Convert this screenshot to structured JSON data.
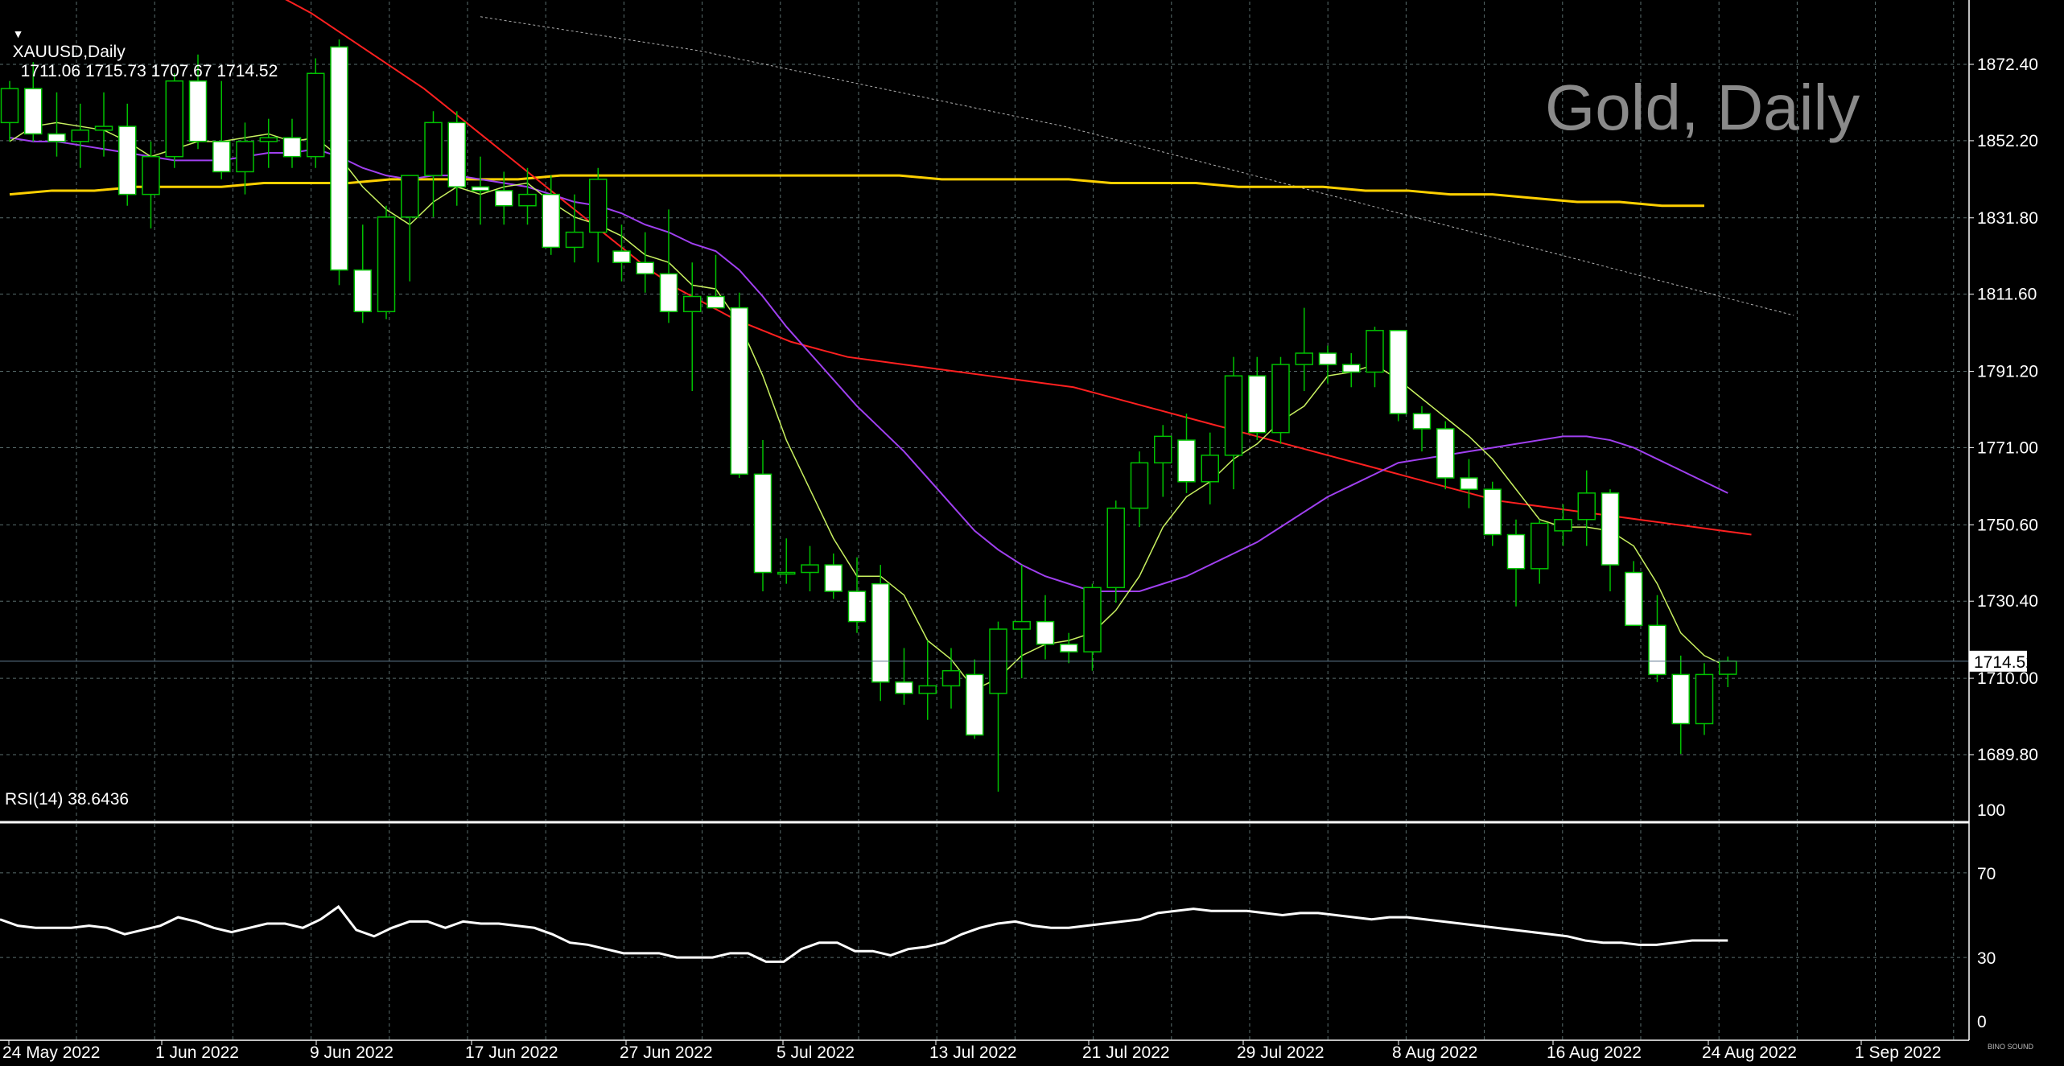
{
  "header": {
    "symbol": "XAUUSD,Daily",
    "ohlc": "1711.06 1715.73 1707.67 1714.52"
  },
  "watermark": "Gold, Daily",
  "rsi_header": "RSI(14) 38.6436",
  "current_price_label": "1714.52",
  "brand": "BINO SOUND",
  "colors": {
    "background": "#000000",
    "grid": "#5a6e6e",
    "bull_candle": "#000000",
    "bear_candle": "#ffffff",
    "wick": "#00c000",
    "ma_fast": "#c8f060",
    "ma_mid": "#a040f0",
    "ma_slow": "#ff2020",
    "ma_long": "#ffd000",
    "ma_longest": "#b0b0b0",
    "rsi": "#ffffff"
  },
  "chart_data": [
    {
      "type": "candlestick",
      "title": "XAUUSD,Daily",
      "ylim": [
        1678,
        1884
      ],
      "yticks": [
        "1872.40",
        "1852.20",
        "1831.80",
        "1811.60",
        "1791.20",
        "1771.00",
        "1750.60",
        "1730.40",
        "1710.00",
        "1689.80"
      ],
      "xtick_labels": [
        "24 May 2022",
        "1 Jun 2022",
        "9 Jun 2022",
        "17 Jun 2022",
        "27 Jun 2022",
        "5 Jul 2022",
        "13 Jul 2022",
        "21 Jul 2022",
        "29 Jul 2022",
        "8 Aug 2022",
        "16 Aug 2022",
        "24 Aug 2022",
        "1 Sep 2022"
      ],
      "candles": [
        {
          "o": 1857,
          "h": 1868,
          "l": 1852,
          "c": 1866
        },
        {
          "o": 1866,
          "h": 1873,
          "l": 1852,
          "c": 1854
        },
        {
          "o": 1854,
          "h": 1865,
          "l": 1848,
          "c": 1852
        },
        {
          "o": 1852,
          "h": 1862,
          "l": 1845,
          "c": 1855
        },
        {
          "o": 1855,
          "h": 1865,
          "l": 1848,
          "c": 1856
        },
        {
          "o": 1856,
          "h": 1862,
          "l": 1835,
          "c": 1838
        },
        {
          "o": 1838,
          "h": 1852,
          "l": 1829,
          "c": 1848
        },
        {
          "o": 1848,
          "h": 1870,
          "l": 1845,
          "c": 1868
        },
        {
          "o": 1868,
          "h": 1875,
          "l": 1850,
          "c": 1852
        },
        {
          "o": 1852,
          "h": 1868,
          "l": 1842,
          "c": 1844
        },
        {
          "o": 1844,
          "h": 1857,
          "l": 1838,
          "c": 1852
        },
        {
          "o": 1852,
          "h": 1858,
          "l": 1845,
          "c": 1853
        },
        {
          "o": 1853,
          "h": 1858,
          "l": 1845,
          "c": 1848
        },
        {
          "o": 1848,
          "h": 1874,
          "l": 1845,
          "c": 1870
        },
        {
          "o": 1877,
          "h": 1879,
          "l": 1814,
          "c": 1818
        },
        {
          "o": 1818,
          "h": 1830,
          "l": 1804,
          "c": 1807
        },
        {
          "o": 1807,
          "h": 1835,
          "l": 1805,
          "c": 1832
        },
        {
          "o": 1832,
          "h": 1842,
          "l": 1815,
          "c": 1843
        },
        {
          "o": 1843,
          "h": 1860,
          "l": 1832,
          "c": 1857
        },
        {
          "o": 1857,
          "h": 1860,
          "l": 1835,
          "c": 1840
        },
        {
          "o": 1840,
          "h": 1848,
          "l": 1830,
          "c": 1839
        },
        {
          "o": 1839,
          "h": 1844,
          "l": 1830,
          "c": 1835
        },
        {
          "o": 1835,
          "h": 1845,
          "l": 1830,
          "c": 1838
        },
        {
          "o": 1838,
          "h": 1843,
          "l": 1822,
          "c": 1824
        },
        {
          "o": 1824,
          "h": 1838,
          "l": 1820,
          "c": 1828
        },
        {
          "o": 1828,
          "h": 1845,
          "l": 1820,
          "c": 1842
        },
        {
          "o": 1823,
          "h": 1830,
          "l": 1815,
          "c": 1820
        },
        {
          "o": 1820,
          "h": 1828,
          "l": 1812,
          "c": 1817
        },
        {
          "o": 1817,
          "h": 1834,
          "l": 1804,
          "c": 1807
        },
        {
          "o": 1807,
          "h": 1820,
          "l": 1786,
          "c": 1811
        },
        {
          "o": 1811,
          "h": 1822,
          "l": 1808,
          "c": 1808
        },
        {
          "o": 1808,
          "h": 1812,
          "l": 1763,
          "c": 1764
        },
        {
          "o": 1764,
          "h": 1773,
          "l": 1733,
          "c": 1738
        },
        {
          "o": 1738,
          "h": 1747,
          "l": 1735,
          "c": 1738
        },
        {
          "o": 1738,
          "h": 1745,
          "l": 1733,
          "c": 1740
        },
        {
          "o": 1740,
          "h": 1743,
          "l": 1731,
          "c": 1733
        },
        {
          "o": 1733,
          "h": 1742,
          "l": 1722,
          "c": 1725
        },
        {
          "o": 1735,
          "h": 1740,
          "l": 1704,
          "c": 1709
        },
        {
          "o": 1709,
          "h": 1718,
          "l": 1703,
          "c": 1706
        },
        {
          "o": 1706,
          "h": 1720,
          "l": 1699,
          "c": 1708
        },
        {
          "o": 1708,
          "h": 1718,
          "l": 1702,
          "c": 1712
        },
        {
          "o": 1711,
          "h": 1715,
          "l": 1694,
          "c": 1695
        },
        {
          "o": 1706,
          "h": 1725,
          "l": 1680,
          "c": 1723
        },
        {
          "o": 1723,
          "h": 1740,
          "l": 1710,
          "c": 1725
        },
        {
          "o": 1725,
          "h": 1732,
          "l": 1715,
          "c": 1719
        },
        {
          "o": 1719,
          "h": 1722,
          "l": 1714,
          "c": 1717
        },
        {
          "o": 1717,
          "h": 1735,
          "l": 1712,
          "c": 1734
        },
        {
          "o": 1734,
          "h": 1757,
          "l": 1730,
          "c": 1755
        },
        {
          "o": 1755,
          "h": 1770,
          "l": 1750,
          "c": 1767
        },
        {
          "o": 1767,
          "h": 1777,
          "l": 1758,
          "c": 1774
        },
        {
          "o": 1773,
          "h": 1780,
          "l": 1759,
          "c": 1762
        },
        {
          "o": 1762,
          "h": 1775,
          "l": 1756,
          "c": 1769
        },
        {
          "o": 1769,
          "h": 1795,
          "l": 1760,
          "c": 1790
        },
        {
          "o": 1790,
          "h": 1795,
          "l": 1773,
          "c": 1775
        },
        {
          "o": 1775,
          "h": 1795,
          "l": 1772,
          "c": 1793
        },
        {
          "o": 1793,
          "h": 1808,
          "l": 1786,
          "c": 1796
        },
        {
          "o": 1796,
          "h": 1798,
          "l": 1788,
          "c": 1793
        },
        {
          "o": 1793,
          "h": 1796,
          "l": 1787,
          "c": 1791
        },
        {
          "o": 1791,
          "h": 1803,
          "l": 1787,
          "c": 1802
        },
        {
          "o": 1802,
          "h": 1802,
          "l": 1778,
          "c": 1780
        },
        {
          "o": 1780,
          "h": 1782,
          "l": 1770,
          "c": 1776
        },
        {
          "o": 1776,
          "h": 1778,
          "l": 1760,
          "c": 1763
        },
        {
          "o": 1763,
          "h": 1768,
          "l": 1755,
          "c": 1760
        },
        {
          "o": 1760,
          "h": 1762,
          "l": 1745,
          "c": 1748
        },
        {
          "o": 1748,
          "h": 1752,
          "l": 1729,
          "c": 1739
        },
        {
          "o": 1739,
          "h": 1752,
          "l": 1735,
          "c": 1751
        },
        {
          "o": 1749,
          "h": 1756,
          "l": 1745,
          "c": 1752
        },
        {
          "o": 1752,
          "h": 1765,
          "l": 1745,
          "c": 1759
        },
        {
          "o": 1759,
          "h": 1760,
          "l": 1733,
          "c": 1740
        },
        {
          "o": 1738,
          "h": 1741,
          "l": 1724,
          "c": 1724
        },
        {
          "o": 1724,
          "h": 1732,
          "l": 1709,
          "c": 1711
        },
        {
          "o": 1711,
          "h": 1716,
          "l": 1690,
          "c": 1698
        },
        {
          "o": 1698,
          "h": 1714,
          "l": 1695,
          "c": 1711
        },
        {
          "o": 1711.06,
          "h": 1715.73,
          "l": 1707.67,
          "c": 1714.52
        }
      ],
      "ma_fast": [
        1852,
        1856,
        1857,
        1856,
        1855,
        1852,
        1848,
        1850,
        1852,
        1852,
        1853,
        1854,
        1852,
        1853,
        1848,
        1840,
        1834,
        1830,
        1836,
        1840,
        1838,
        1840,
        1841,
        1836,
        1832,
        1830,
        1827,
        1822,
        1820,
        1814,
        1813,
        1804,
        1790,
        1773,
        1760,
        1747,
        1737,
        1737,
        1732,
        1720,
        1715,
        1707,
        1710,
        1716,
        1719,
        1720,
        1722,
        1728,
        1737,
        1750,
        1758,
        1762,
        1768,
        1772,
        1778,
        1782,
        1790,
        1791,
        1793,
        1789,
        1784,
        1779,
        1774,
        1768,
        1760,
        1752,
        1750,
        1750,
        1749,
        1745,
        1735,
        1722,
        1716,
        1713
      ],
      "ma_mid": [
        1853,
        1852,
        1852,
        1851,
        1850,
        1849,
        1848,
        1847,
        1847,
        1847,
        1848,
        1849,
        1849,
        1850,
        1848,
        1845,
        1843,
        1842,
        1843,
        1843,
        1842,
        1841,
        1840,
        1838,
        1836,
        1835,
        1833,
        1830,
        1828,
        1825,
        1823,
        1818,
        1811,
        1803,
        1796,
        1789,
        1782,
        1776,
        1770,
        1763,
        1756,
        1749,
        1744,
        1740,
        1737,
        1735,
        1733,
        1733,
        1733,
        1735,
        1737,
        1740,
        1743,
        1746,
        1750,
        1754,
        1758,
        1761,
        1764,
        1767,
        1768,
        1769,
        1770,
        1771,
        1772,
        1773,
        1774,
        1774,
        1773,
        1771,
        1768,
        1765,
        1762,
        1759
      ],
      "ma_slow": [
        1900,
        1897,
        1893,
        1890,
        1886,
        1881,
        1876,
        1871,
        1866,
        1860,
        1854,
        1848,
        1842,
        1836,
        1830,
        1824,
        1818,
        1813,
        1809,
        1805,
        1802,
        1799,
        1797,
        1795,
        1794,
        1793,
        1792,
        1791,
        1790,
        1789,
        1788,
        1787,
        1785,
        1783,
        1781,
        1779,
        1777,
        1775,
        1773,
        1771,
        1769,
        1767,
        1765,
        1763,
        1761,
        1759,
        1757,
        1756,
        1755,
        1754,
        1753,
        1752,
        1751,
        1750,
        1749,
        1748
      ],
      "ma_long": [
        1838,
        1839,
        1839,
        1840,
        1840,
        1840,
        1841,
        1841,
        1841,
        1842,
        1842,
        1842,
        1842,
        1843,
        1843,
        1843,
        1843,
        1843,
        1843,
        1843,
        1843,
        1843,
        1842,
        1842,
        1842,
        1842,
        1841,
        1841,
        1841,
        1840,
        1840,
        1840,
        1839,
        1839,
        1838,
        1838,
        1837,
        1836,
        1836,
        1835,
        1835
      ],
      "ma_longest": [
        1885,
        1882,
        1879,
        1876,
        1872,
        1868,
        1864,
        1860,
        1856,
        1851,
        1846,
        1841,
        1836,
        1831,
        1826,
        1821,
        1816,
        1811,
        1806
      ]
    },
    {
      "type": "line",
      "title": "RSI(14) 38.6436",
      "ylim": [
        0,
        100
      ],
      "yticks": [
        "100",
        "70",
        "30",
        "0"
      ],
      "series": [
        {
          "values": [
            48,
            45,
            44,
            44,
            44,
            45,
            44,
            41,
            43,
            45,
            49,
            47,
            44,
            42,
            44,
            46,
            46,
            44,
            48,
            54,
            43,
            40,
            44,
            47,
            47,
            44,
            47,
            46,
            46,
            45,
            44,
            41,
            37,
            36,
            34,
            32,
            32,
            32,
            30,
            30,
            30,
            32,
            32,
            28,
            28,
            34,
            37,
            37,
            33,
            33,
            31,
            34,
            35,
            37,
            41,
            44,
            46,
            47,
            45,
            44,
            44,
            45,
            46,
            47,
            48,
            51,
            52,
            53,
            52,
            52,
            52,
            51,
            50,
            51,
            51,
            50,
            49,
            48,
            49,
            49,
            48,
            47,
            46,
            45,
            44,
            43,
            42,
            41,
            40,
            38,
            37,
            37,
            36,
            36,
            37,
            38,
            38,
            38
          ]
        }
      ]
    }
  ]
}
